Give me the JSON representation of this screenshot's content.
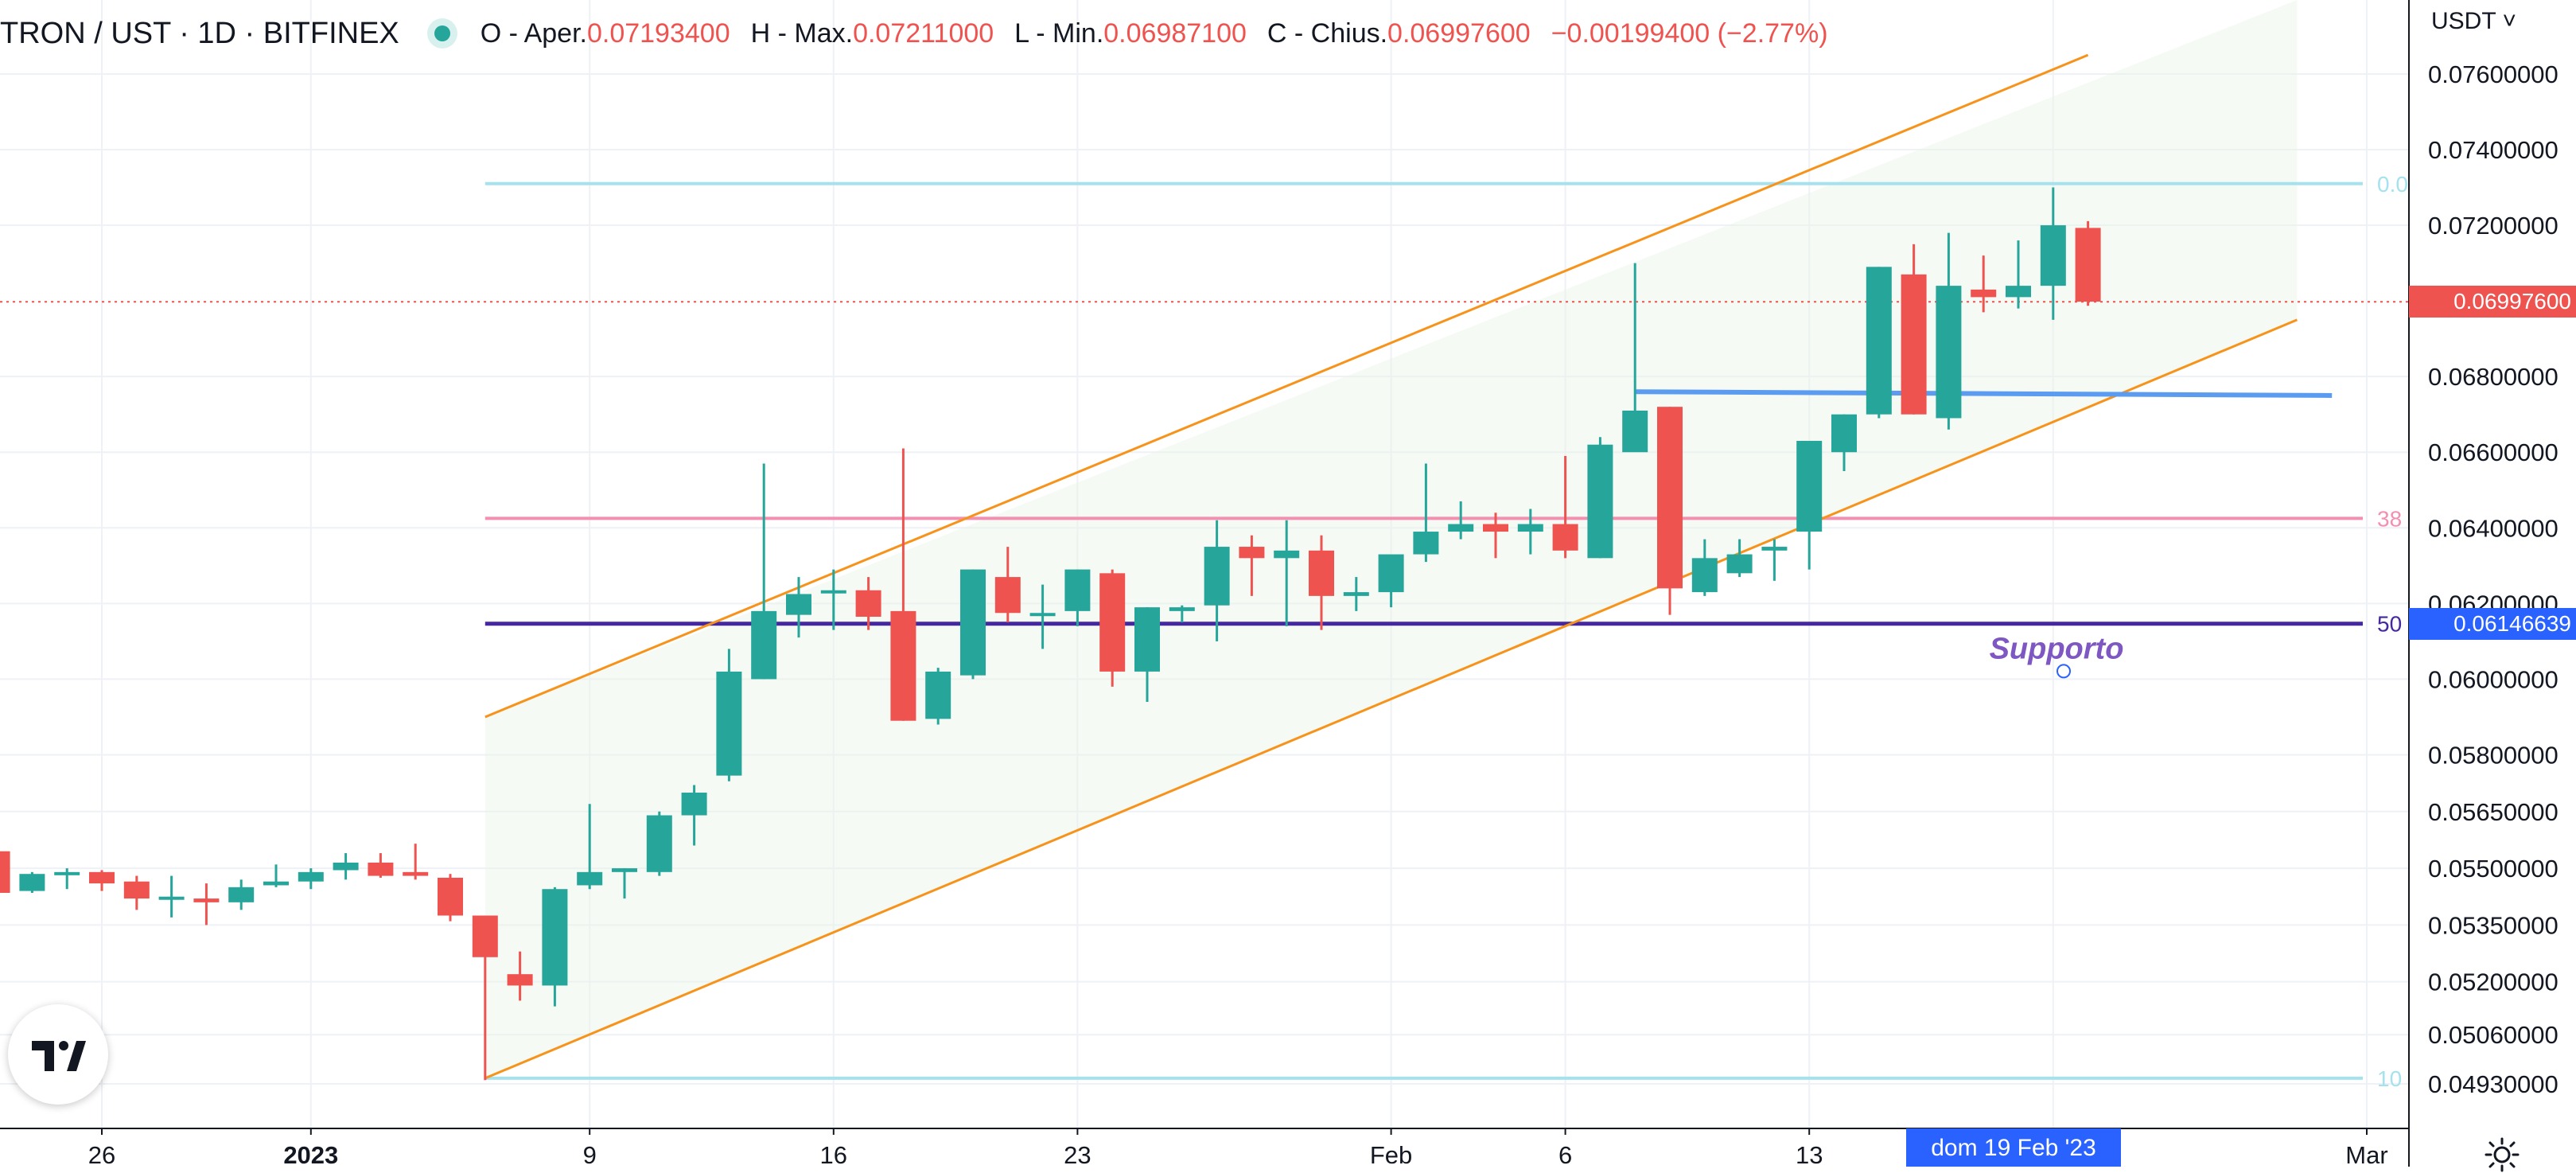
{
  "legend": {
    "symbol": "TRON / UST · 1D · BITFINEX",
    "open_label": "O - Aper.",
    "open_value": "0.07193400",
    "high_label": "H - Max.",
    "high_value": "0.07211000",
    "low_label": "L - Min.",
    "low_value": "0.06987100",
    "close_label": "C - Chius.",
    "close_value": "0.06997600",
    "change": "−0.00199400 (−2.77%)"
  },
  "currency_label": "USDT ˅",
  "price_tags": {
    "last": "0.06997600",
    "support": "0.06146639"
  },
  "date_tag": "dom 19 Feb '23",
  "colors": {
    "up": "#26a69a",
    "down": "#ef5350",
    "channel": "#f7931a",
    "support": "#4527a0",
    "fib_top": "#a5e2ee",
    "fib_382": "#f48fb1",
    "resistance": "#5b9cf0",
    "date_tag": "#2962ff"
  },
  "icons": {
    "logo": "tradingview-logo-icon",
    "settings": "sun-settings-icon",
    "live": "live-dot-icon"
  },
  "chart_data": {
    "type": "candlestick",
    "y_axis_ticks": [
      "0.07600000",
      "0.07400000",
      "0.07200000",
      "0.06800000",
      "0.06600000",
      "0.06400000",
      "0.06200000",
      "0.06000000",
      "0.05800000",
      "0.05650000",
      "0.05500000",
      "0.05350000",
      "0.05200000",
      "0.05060000",
      "0.04930000"
    ],
    "x_axis_ticks": [
      "26",
      "2023",
      "9",
      "16",
      "23",
      "Feb",
      "6",
      "13",
      "Mar"
    ],
    "candles": [
      {
        "d": "2022-12-23",
        "o": 0.05545,
        "h": 0.05545,
        "l": 0.05435,
        "c": 0.05435
      },
      {
        "d": "2022-12-24",
        "o": 0.0544,
        "h": 0.0549,
        "l": 0.05435,
        "c": 0.05485
      },
      {
        "d": "2022-12-25",
        "o": 0.05485,
        "h": 0.055,
        "l": 0.05445,
        "c": 0.0549
      },
      {
        "d": "2022-12-26",
        "o": 0.0549,
        "h": 0.05495,
        "l": 0.0544,
        "c": 0.0546
      },
      {
        "d": "2022-12-27",
        "o": 0.05465,
        "h": 0.0548,
        "l": 0.0539,
        "c": 0.0542
      },
      {
        "d": "2022-12-28",
        "o": 0.0542,
        "h": 0.0548,
        "l": 0.0537,
        "c": 0.05425
      },
      {
        "d": "2022-12-29",
        "o": 0.0542,
        "h": 0.0546,
        "l": 0.0535,
        "c": 0.0541
      },
      {
        "d": "2022-12-30",
        "o": 0.0541,
        "h": 0.0547,
        "l": 0.0539,
        "c": 0.0545
      },
      {
        "d": "2022-12-31",
        "o": 0.05455,
        "h": 0.0551,
        "l": 0.0545,
        "c": 0.05465
      },
      {
        "d": "2023-01-01",
        "o": 0.05465,
        "h": 0.055,
        "l": 0.05445,
        "c": 0.0549
      },
      {
        "d": "2023-01-02",
        "o": 0.05495,
        "h": 0.0554,
        "l": 0.0547,
        "c": 0.05515
      },
      {
        "d": "2023-01-03",
        "o": 0.05515,
        "h": 0.0554,
        "l": 0.05475,
        "c": 0.0548
      },
      {
        "d": "2023-01-04",
        "o": 0.0549,
        "h": 0.05565,
        "l": 0.0547,
        "c": 0.0548
      },
      {
        "d": "2023-01-05",
        "o": 0.05475,
        "h": 0.05485,
        "l": 0.0536,
        "c": 0.05375
      },
      {
        "d": "2023-01-06",
        "o": 0.05375,
        "h": 0.05375,
        "l": 0.0494,
        "c": 0.05265
      },
      {
        "d": "2023-01-07",
        "o": 0.0522,
        "h": 0.0528,
        "l": 0.0515,
        "c": 0.0519
      },
      {
        "d": "2023-01-08",
        "o": 0.0519,
        "h": 0.0545,
        "l": 0.05135,
        "c": 0.05445
      },
      {
        "d": "2023-01-09",
        "o": 0.05455,
        "h": 0.0567,
        "l": 0.05445,
        "c": 0.0549
      },
      {
        "d": "2023-01-10",
        "o": 0.0549,
        "h": 0.055,
        "l": 0.0542,
        "c": 0.055
      },
      {
        "d": "2023-01-11",
        "o": 0.0549,
        "h": 0.0565,
        "l": 0.0548,
        "c": 0.0564
      },
      {
        "d": "2023-01-12",
        "o": 0.0564,
        "h": 0.0572,
        "l": 0.0556,
        "c": 0.057
      },
      {
        "d": "2023-01-13",
        "o": 0.05745,
        "h": 0.0608,
        "l": 0.0573,
        "c": 0.0602
      },
      {
        "d": "2023-01-14",
        "o": 0.06,
        "h": 0.0657,
        "l": 0.06,
        "c": 0.0618
      },
      {
        "d": "2023-01-15",
        "o": 0.0617,
        "h": 0.0627,
        "l": 0.0611,
        "c": 0.06225
      },
      {
        "d": "2023-01-16",
        "o": 0.06235,
        "h": 0.0629,
        "l": 0.0613,
        "c": 0.06235
      },
      {
        "d": "2023-01-17",
        "o": 0.06235,
        "h": 0.0627,
        "l": 0.0613,
        "c": 0.06165
      },
      {
        "d": "2023-01-18",
        "o": 0.0618,
        "h": 0.0661,
        "l": 0.0589,
        "c": 0.0589
      },
      {
        "d": "2023-01-19",
        "o": 0.05895,
        "h": 0.0603,
        "l": 0.0588,
        "c": 0.0602
      },
      {
        "d": "2023-01-20",
        "o": 0.0601,
        "h": 0.0629,
        "l": 0.06,
        "c": 0.0629
      },
      {
        "d": "2023-01-21",
        "o": 0.0627,
        "h": 0.0635,
        "l": 0.0615,
        "c": 0.06175
      },
      {
        "d": "2023-01-22",
        "o": 0.06175,
        "h": 0.0625,
        "l": 0.0608,
        "c": 0.06175
      },
      {
        "d": "2023-01-23",
        "o": 0.0618,
        "h": 0.0629,
        "l": 0.0614,
        "c": 0.0629
      },
      {
        "d": "2023-01-24",
        "o": 0.0628,
        "h": 0.0629,
        "l": 0.0598,
        "c": 0.0602
      },
      {
        "d": "2023-01-25",
        "o": 0.0602,
        "h": 0.0619,
        "l": 0.0594,
        "c": 0.0619
      },
      {
        "d": "2023-01-26",
        "o": 0.0618,
        "h": 0.06195,
        "l": 0.0615,
        "c": 0.0619
      },
      {
        "d": "2023-01-27",
        "o": 0.06195,
        "h": 0.0642,
        "l": 0.061,
        "c": 0.0635
      },
      {
        "d": "2023-01-28",
        "o": 0.0635,
        "h": 0.0638,
        "l": 0.0622,
        "c": 0.0632
      },
      {
        "d": "2023-01-29",
        "o": 0.0632,
        "h": 0.0642,
        "l": 0.0614,
        "c": 0.0634
      },
      {
        "d": "2023-01-30",
        "o": 0.0634,
        "h": 0.0638,
        "l": 0.0613,
        "c": 0.0622
      },
      {
        "d": "2023-01-31",
        "o": 0.0622,
        "h": 0.0627,
        "l": 0.0618,
        "c": 0.0623
      },
      {
        "d": "2023-02-01",
        "o": 0.0623,
        "h": 0.0632,
        "l": 0.0619,
        "c": 0.0633
      },
      {
        "d": "2023-02-02",
        "o": 0.0633,
        "h": 0.0657,
        "l": 0.0631,
        "c": 0.0639
      },
      {
        "d": "2023-02-03",
        "o": 0.0639,
        "h": 0.0647,
        "l": 0.0637,
        "c": 0.0641
      },
      {
        "d": "2023-02-04",
        "o": 0.0641,
        "h": 0.0644,
        "l": 0.0632,
        "c": 0.0639
      },
      {
        "d": "2023-02-05",
        "o": 0.0639,
        "h": 0.0645,
        "l": 0.0633,
        "c": 0.0641
      },
      {
        "d": "2023-02-06",
        "o": 0.0641,
        "h": 0.0659,
        "l": 0.0632,
        "c": 0.0634
      },
      {
        "d": "2023-02-07",
        "o": 0.0632,
        "h": 0.0664,
        "l": 0.0632,
        "c": 0.0662
      },
      {
        "d": "2023-02-08",
        "o": 0.066,
        "h": 0.071,
        "l": 0.0661,
        "c": 0.0671
      },
      {
        "d": "2023-02-09",
        "o": 0.0672,
        "h": 0.0672,
        "l": 0.0617,
        "c": 0.0624
      },
      {
        "d": "2023-02-10",
        "o": 0.0623,
        "h": 0.0637,
        "l": 0.0622,
        "c": 0.0632
      },
      {
        "d": "2023-02-11",
        "o": 0.0628,
        "h": 0.0637,
        "l": 0.0627,
        "c": 0.0633
      },
      {
        "d": "2023-02-12",
        "o": 0.0634,
        "h": 0.0637,
        "l": 0.0626,
        "c": 0.0635
      },
      {
        "d": "2023-02-13",
        "o": 0.0639,
        "h": 0.0662,
        "l": 0.0629,
        "c": 0.0663
      },
      {
        "d": "2023-02-14",
        "o": 0.066,
        "h": 0.067,
        "l": 0.0655,
        "c": 0.067
      },
      {
        "d": "2023-02-15",
        "o": 0.067,
        "h": 0.0709,
        "l": 0.0669,
        "c": 0.0709
      },
      {
        "d": "2023-02-16",
        "o": 0.0707,
        "h": 0.0715,
        "l": 0.067,
        "c": 0.067
      },
      {
        "d": "2023-02-17",
        "o": 0.0669,
        "h": 0.0718,
        "l": 0.0666,
        "c": 0.0704
      },
      {
        "d": "2023-02-18",
        "o": 0.0703,
        "h": 0.0712,
        "l": 0.0697,
        "c": 0.0701
      },
      {
        "d": "2023-02-19",
        "o": 0.0701,
        "h": 0.0716,
        "l": 0.0698,
        "c": 0.0704
      },
      {
        "d": "2023-02-20",
        "o": 0.0704,
        "h": 0.073,
        "l": 0.0695,
        "c": 0.072
      },
      {
        "d": "2023-02-21",
        "o": 0.07193,
        "h": 0.07211,
        "l": 0.06987,
        "c": 0.06998
      }
    ],
    "horizontal_lines": [
      {
        "name": "fib_top",
        "value": 0.0731,
        "label": "0.0"
      },
      {
        "name": "fib_382",
        "value": 0.06425,
        "label": "38"
      },
      {
        "name": "support",
        "value": 0.06146639,
        "label": "50"
      },
      {
        "name": "fib_bottom",
        "value": 0.04945,
        "label": "10"
      },
      {
        "name": "last_price",
        "value": 0.069976
      }
    ],
    "trendlines": [
      {
        "name": "channel-upper",
        "from": [
          "2023-01-06",
          0.059
        ],
        "to": [
          "2023-02-21",
          0.0765
        ]
      },
      {
        "name": "channel-lower",
        "from": [
          "2023-01-06",
          0.04945
        ],
        "to": [
          "2023-02-27",
          0.0695
        ]
      },
      {
        "name": "resistance",
        "from": [
          "2023-02-08",
          0.0676
        ],
        "to": [
          "2023-02-28",
          0.0675
        ]
      }
    ],
    "annotations": [
      {
        "text": "Supporto",
        "date": "2023-02-19",
        "value": 0.0608
      }
    ]
  }
}
